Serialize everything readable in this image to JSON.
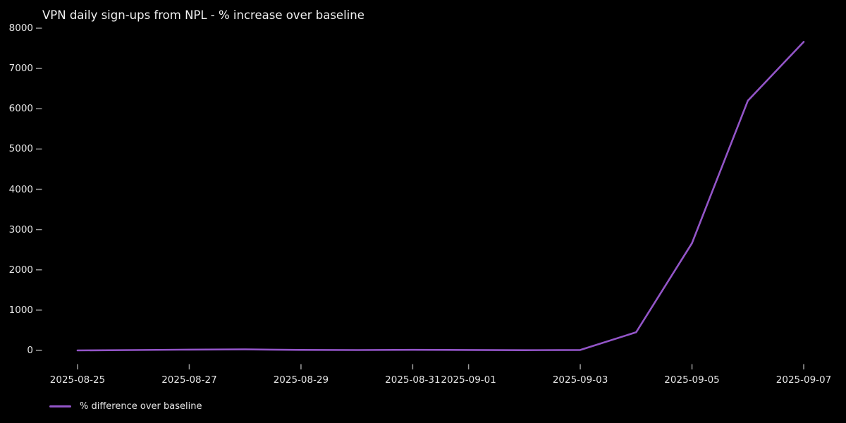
{
  "figure": {
    "title": "VPN daily sign-ups from NPL - % increase over baseline"
  },
  "legend": {
    "label": "% difference over baseline"
  },
  "colors": {
    "background": "#000000",
    "line": "#9355c8",
    "title_text": "#f2f2f2",
    "tick_text": "#e4e4e4",
    "tick_mark": "#9c9c9c"
  },
  "chart_data": {
    "type": "line",
    "title": "VPN daily sign-ups from NPL - % increase over baseline",
    "x": [
      "2025-08-25",
      "2025-08-26",
      "2025-08-27",
      "2025-08-28",
      "2025-08-29",
      "2025-08-30",
      "2025-08-31",
      "2025-09-01",
      "2025-09-02",
      "2025-09-03",
      "2025-09-04",
      "2025-09-05",
      "2025-09-06",
      "2025-09-07"
    ],
    "series": [
      {
        "name": "% difference over baseline",
        "values": [
          0,
          8,
          20,
          25,
          12,
          8,
          14,
          10,
          6,
          10,
          450,
          2660,
          6200,
          7660
        ]
      }
    ],
    "xlabel": "",
    "ylabel": "",
    "ylim": [
      0,
      8000
    ],
    "y_ticks": [
      0,
      1000,
      2000,
      3000,
      4000,
      5000,
      6000,
      7000,
      8000
    ],
    "x_tick_labels": [
      "2025-08-25",
      "2025-08-27",
      "2025-08-29",
      "2025-08-31",
      "2025-09-01",
      "2025-09-03",
      "2025-09-05",
      "2025-09-07"
    ],
    "grid": false,
    "legend_position": "lower-left",
    "line_color": "#9355c8",
    "background": "#000000"
  }
}
